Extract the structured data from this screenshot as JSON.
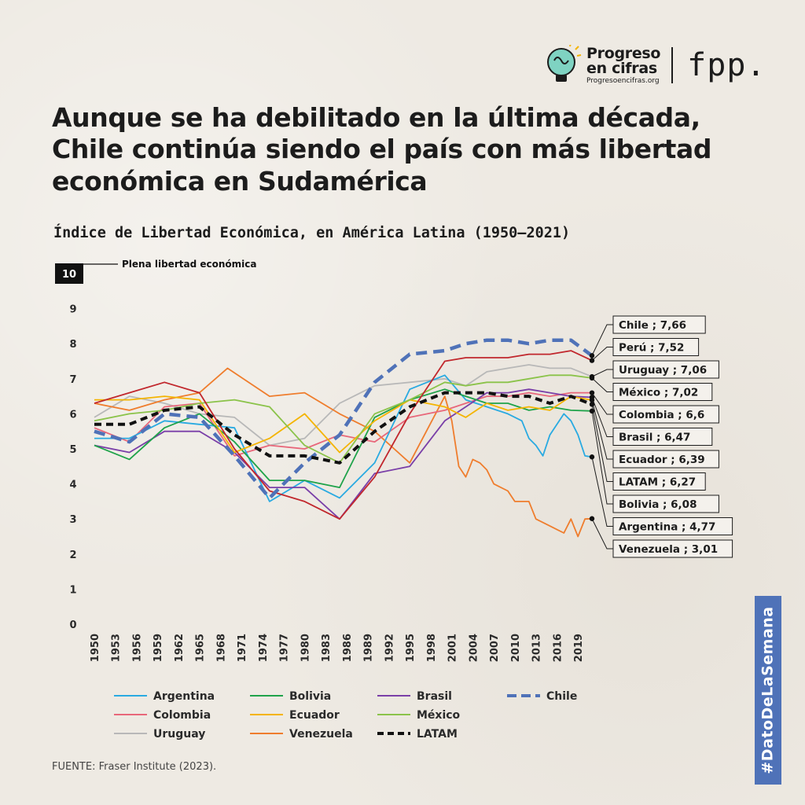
{
  "logo": {
    "line1": "Progreso",
    "line2": "en cifras",
    "site": "Progresoencifras.org",
    "brand": "fpp."
  },
  "title": "Aunque se ha debilitado en la última década, Chile continúa siendo el país con más libertad económica en Sudamérica",
  "hashtag": "#DatoDeLaSemana",
  "source": "FUENTE: Fraser Institute (2023).",
  "colors": {
    "chile": "#4f72b8",
    "accent": "#4f72b8"
  },
  "chart_data": {
    "type": "line",
    "title": "Índice de Libertad Económica, en América Latina (1950–2021)",
    "ylim": [
      0,
      10
    ],
    "yticks": [
      0,
      1,
      2,
      3,
      4,
      5,
      6,
      7,
      8,
      9,
      10
    ],
    "xlim": [
      1950,
      2021
    ],
    "xticks": [
      1950,
      1953,
      1956,
      1959,
      1962,
      1965,
      1968,
      1971,
      1974,
      1977,
      1980,
      1983,
      1986,
      1989,
      1992,
      1995,
      1998,
      2001,
      2004,
      2007,
      2010,
      2013,
      2016,
      2019
    ],
    "max_annotation": "Plena libertad económica",
    "series": [
      {
        "name": "Argentina",
        "color": "#29aae1",
        "dash": false,
        "end_label": "Argentina ; 4,77",
        "points": [
          [
            1950,
            5.3
          ],
          [
            1955,
            5.3
          ],
          [
            1960,
            5.8
          ],
          [
            1965,
            5.7
          ],
          [
            1970,
            5.6
          ],
          [
            1975,
            3.5
          ],
          [
            1980,
            4.1
          ],
          [
            1985,
            3.6
          ],
          [
            1990,
            4.6
          ],
          [
            1995,
            6.7
          ],
          [
            2000,
            7.1
          ],
          [
            2003,
            6.4
          ],
          [
            2006,
            6.2
          ],
          [
            2009,
            6.0
          ],
          [
            2011,
            5.8
          ],
          [
            2012,
            5.3
          ],
          [
            2013,
            5.1
          ],
          [
            2014,
            4.8
          ],
          [
            2015,
            5.4
          ],
          [
            2017,
            6.0
          ],
          [
            2018,
            5.8
          ],
          [
            2019,
            5.4
          ],
          [
            2020,
            4.8
          ],
          [
            2021,
            4.77
          ]
        ]
      },
      {
        "name": "Bolivia",
        "color": "#1fa34a",
        "dash": false,
        "end_label": "Bolivia ; 6,08",
        "points": [
          [
            1950,
            5.1
          ],
          [
            1955,
            4.7
          ],
          [
            1960,
            5.6
          ],
          [
            1965,
            6.0
          ],
          [
            1970,
            5.2
          ],
          [
            1975,
            4.1
          ],
          [
            1980,
            4.1
          ],
          [
            1985,
            3.9
          ],
          [
            1990,
            5.9
          ],
          [
            1995,
            6.4
          ],
          [
            2000,
            6.7
          ],
          [
            2003,
            6.5
          ],
          [
            2006,
            6.3
          ],
          [
            2009,
            6.3
          ],
          [
            2012,
            6.1
          ],
          [
            2015,
            6.2
          ],
          [
            2018,
            6.1
          ],
          [
            2021,
            6.08
          ]
        ]
      },
      {
        "name": "Brasil",
        "color": "#7a3fa8",
        "dash": false,
        "end_label": "Brasil ; 6,47",
        "points": [
          [
            1950,
            5.1
          ],
          [
            1955,
            4.9
          ],
          [
            1960,
            5.5
          ],
          [
            1965,
            5.5
          ],
          [
            1970,
            4.9
          ],
          [
            1975,
            3.9
          ],
          [
            1980,
            3.9
          ],
          [
            1985,
            3.0
          ],
          [
            1990,
            4.3
          ],
          [
            1995,
            4.5
          ],
          [
            2000,
            5.8
          ],
          [
            2003,
            6.2
          ],
          [
            2006,
            6.6
          ],
          [
            2009,
            6.6
          ],
          [
            2012,
            6.7
          ],
          [
            2015,
            6.6
          ],
          [
            2018,
            6.5
          ],
          [
            2021,
            6.47
          ]
        ]
      },
      {
        "name": "Chile",
        "color": "#4f72b8",
        "dash": true,
        "end_label": "Chile ; 7,66",
        "points": [
          [
            1950,
            5.5
          ],
          [
            1955,
            5.2
          ],
          [
            1960,
            6.0
          ],
          [
            1965,
            5.9
          ],
          [
            1970,
            4.8
          ],
          [
            1975,
            3.6
          ],
          [
            1980,
            4.6
          ],
          [
            1985,
            5.4
          ],
          [
            1990,
            6.9
          ],
          [
            1995,
            7.7
          ],
          [
            2000,
            7.8
          ],
          [
            2003,
            8.0
          ],
          [
            2006,
            8.1
          ],
          [
            2009,
            8.1
          ],
          [
            2012,
            8.0
          ],
          [
            2015,
            8.1
          ],
          [
            2018,
            8.1
          ],
          [
            2021,
            7.66
          ]
        ]
      },
      {
        "name": "Colombia",
        "color": "#e8677a",
        "dash": false,
        "end_label": "Colombia ; 6,6",
        "points": [
          [
            1950,
            5.6
          ],
          [
            1955,
            5.2
          ],
          [
            1960,
            6.2
          ],
          [
            1965,
            6.3
          ],
          [
            1970,
            4.8
          ],
          [
            1975,
            5.1
          ],
          [
            1980,
            5.0
          ],
          [
            1985,
            5.4
          ],
          [
            1990,
            5.2
          ],
          [
            1995,
            5.9
          ],
          [
            2000,
            6.1
          ],
          [
            2003,
            6.3
          ],
          [
            2006,
            6.5
          ],
          [
            2009,
            6.5
          ],
          [
            2012,
            6.6
          ],
          [
            2015,
            6.5
          ],
          [
            2018,
            6.6
          ],
          [
            2021,
            6.6
          ]
        ]
      },
      {
        "name": "Ecuador",
        "color": "#f4b400",
        "dash": false,
        "end_label": "Ecuador ; 6,39",
        "points": [
          [
            1950,
            6.4
          ],
          [
            1955,
            6.4
          ],
          [
            1960,
            6.5
          ],
          [
            1965,
            6.4
          ],
          [
            1970,
            4.9
          ],
          [
            1975,
            5.3
          ],
          [
            1980,
            6.0
          ],
          [
            1985,
            4.9
          ],
          [
            1990,
            5.8
          ],
          [
            1995,
            6.4
          ],
          [
            2000,
            6.2
          ],
          [
            2003,
            5.9
          ],
          [
            2006,
            6.3
          ],
          [
            2009,
            6.1
          ],
          [
            2012,
            6.2
          ],
          [
            2015,
            6.1
          ],
          [
            2018,
            6.5
          ],
          [
            2021,
            6.39
          ]
        ]
      },
      {
        "name": "México",
        "color": "#8bc34a",
        "dash": false,
        "end_label": "México ; 7,02",
        "points": [
          [
            1950,
            5.8
          ],
          [
            1955,
            6.0
          ],
          [
            1960,
            6.1
          ],
          [
            1965,
            6.3
          ],
          [
            1970,
            6.4
          ],
          [
            1975,
            6.2
          ],
          [
            1980,
            5.1
          ],
          [
            1985,
            4.6
          ],
          [
            1990,
            6.0
          ],
          [
            1995,
            6.4
          ],
          [
            2000,
            6.9
          ],
          [
            2003,
            6.8
          ],
          [
            2006,
            6.9
          ],
          [
            2009,
            6.9
          ],
          [
            2012,
            7.0
          ],
          [
            2015,
            7.1
          ],
          [
            2018,
            7.1
          ],
          [
            2021,
            7.02
          ]
        ]
      },
      {
        "name": "Perú",
        "color": "#c1272d",
        "dash": false,
        "end_label": "Perú ; 7,52",
        "points": [
          [
            1950,
            6.3
          ],
          [
            1955,
            6.6
          ],
          [
            1960,
            6.9
          ],
          [
            1965,
            6.6
          ],
          [
            1970,
            5.0
          ],
          [
            1975,
            3.8
          ],
          [
            1980,
            3.5
          ],
          [
            1985,
            3.0
          ],
          [
            1990,
            4.2
          ],
          [
            1995,
            6.0
          ],
          [
            2000,
            7.5
          ],
          [
            2003,
            7.6
          ],
          [
            2006,
            7.6
          ],
          [
            2009,
            7.6
          ],
          [
            2012,
            7.7
          ],
          [
            2015,
            7.7
          ],
          [
            2018,
            7.8
          ],
          [
            2021,
            7.52
          ]
        ]
      },
      {
        "name": "Uruguay",
        "color": "#b8b8b8",
        "dash": false,
        "end_label": "Uruguay ; 7,06",
        "points": [
          [
            1950,
            5.9
          ],
          [
            1955,
            6.5
          ],
          [
            1960,
            6.3
          ],
          [
            1965,
            6.0
          ],
          [
            1970,
            5.9
          ],
          [
            1975,
            5.1
          ],
          [
            1980,
            5.3
          ],
          [
            1985,
            6.3
          ],
          [
            1990,
            6.8
          ],
          [
            1995,
            6.9
          ],
          [
            2000,
            7.0
          ],
          [
            2003,
            6.8
          ],
          [
            2006,
            7.2
          ],
          [
            2009,
            7.3
          ],
          [
            2012,
            7.4
          ],
          [
            2015,
            7.3
          ],
          [
            2018,
            7.3
          ],
          [
            2021,
            7.06
          ]
        ]
      },
      {
        "name": "Venezuela",
        "color": "#ef7d2d",
        "dash": false,
        "end_label": "Venezuela ; 3,01",
        "points": [
          [
            1950,
            6.3
          ],
          [
            1955,
            6.1
          ],
          [
            1960,
            6.4
          ],
          [
            1965,
            6.6
          ],
          [
            1969,
            7.3
          ],
          [
            1975,
            6.5
          ],
          [
            1980,
            6.6
          ],
          [
            1985,
            6.0
          ],
          [
            1990,
            5.5
          ],
          [
            1995,
            4.6
          ],
          [
            2000,
            6.5
          ],
          [
            2001,
            5.8
          ],
          [
            2002,
            4.5
          ],
          [
            2003,
            4.2
          ],
          [
            2004,
            4.7
          ],
          [
            2005,
            4.6
          ],
          [
            2006,
            4.4
          ],
          [
            2007,
            4.0
          ],
          [
            2009,
            3.8
          ],
          [
            2010,
            3.5
          ],
          [
            2012,
            3.5
          ],
          [
            2013,
            3.0
          ],
          [
            2015,
            2.8
          ],
          [
            2016,
            2.7
          ],
          [
            2017,
            2.6
          ],
          [
            2018,
            3.0
          ],
          [
            2019,
            2.5
          ],
          [
            2020,
            3.0
          ],
          [
            2021,
            3.01
          ]
        ]
      },
      {
        "name": "LATAM",
        "color": "#111111",
        "dash": true,
        "end_label": "LATAM ; 6,27",
        "points": [
          [
            1950,
            5.7
          ],
          [
            1955,
            5.7
          ],
          [
            1960,
            6.1
          ],
          [
            1965,
            6.2
          ],
          [
            1970,
            5.4
          ],
          [
            1975,
            4.8
          ],
          [
            1980,
            4.8
          ],
          [
            1985,
            4.6
          ],
          [
            1990,
            5.5
          ],
          [
            1995,
            6.2
          ],
          [
            2000,
            6.6
          ],
          [
            2003,
            6.6
          ],
          [
            2006,
            6.6
          ],
          [
            2009,
            6.5
          ],
          [
            2012,
            6.5
          ],
          [
            2015,
            6.3
          ],
          [
            2018,
            6.5
          ],
          [
            2021,
            6.27
          ]
        ]
      }
    ],
    "end_order": [
      "Chile",
      "Perú",
      "Uruguay",
      "México",
      "Colombia",
      "Brasil",
      "Ecuador",
      "LATAM",
      "Bolivia",
      "Argentina",
      "Venezuela"
    ],
    "legend": [
      "Argentina",
      "Bolivia",
      "Brasil",
      "Chile",
      "Colombia",
      "Ecuador",
      "México",
      "Uruguay",
      "Venezuela",
      "LATAM"
    ]
  }
}
